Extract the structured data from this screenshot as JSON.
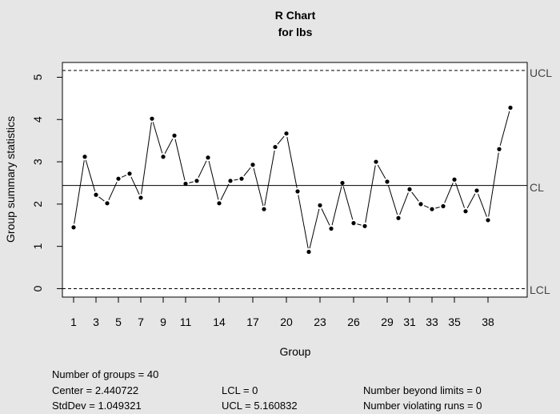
{
  "chart_data": {
    "type": "line",
    "title": "R Chart",
    "subtitle": "for lbs",
    "xlabel": "Group",
    "ylabel": "Group summary statistics",
    "x": [
      1,
      2,
      3,
      4,
      5,
      6,
      7,
      8,
      9,
      10,
      11,
      12,
      13,
      14,
      15,
      16,
      17,
      18,
      19,
      20,
      21,
      22,
      23,
      24,
      25,
      26,
      27,
      28,
      29,
      30,
      31,
      32,
      33,
      34,
      35,
      36,
      37,
      38,
      39,
      40
    ],
    "values": [
      1.45,
      3.12,
      2.22,
      2.02,
      2.6,
      2.72,
      2.15,
      4.02,
      3.12,
      3.62,
      2.48,
      2.55,
      3.1,
      2.02,
      2.55,
      2.6,
      2.93,
      1.88,
      3.35,
      3.67,
      2.3,
      0.87,
      1.97,
      1.42,
      2.5,
      1.55,
      1.48,
      3.0,
      2.53,
      1.67,
      2.35,
      2.0,
      1.88,
      1.95,
      2.58,
      1.83,
      2.32,
      1.62,
      3.3,
      4.28
    ],
    "xticks": [
      1,
      3,
      5,
      7,
      9,
      11,
      14,
      17,
      20,
      23,
      26,
      29,
      31,
      33,
      35,
      38
    ],
    "yticks": [
      0,
      1,
      2,
      3,
      4,
      5
    ],
    "xlim": [
      0,
      41.5
    ],
    "ylim": [
      -0.2,
      5.35
    ],
    "control_limits": {
      "UCL": 5.160832,
      "CL": 2.440722,
      "LCL": 0
    },
    "limit_labels": {
      "ucl": "UCL",
      "cl": "CL",
      "lcl": "LCL"
    }
  },
  "stats": {
    "groups": "Number of groups = 40",
    "center": "Center = 2.440722",
    "stddev": "StdDev = 1.049321",
    "lcl": "LCL = 0",
    "ucl": "UCL = 5.160832",
    "beyond": "Number beyond limits = 0",
    "violating": "Number violating runs = 0"
  }
}
